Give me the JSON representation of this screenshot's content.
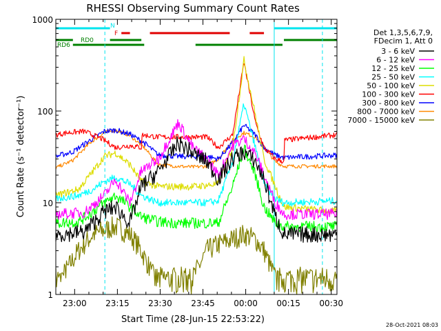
{
  "chart_data": {
    "type": "line",
    "title": "RHESSI Observing Summary Count Rates",
    "xlabel": "Start Time (28-Jun-15 22:53:22)",
    "ylabel": "Count Rate (s⁻¹ detector⁻¹)",
    "yscale": "log",
    "ylim": [
      1,
      1000
    ],
    "xlim": [
      0,
      98.6
    ],
    "x_units": "minutes since 22:53:22",
    "y_ticks": [
      {
        "value": 1,
        "label": "1"
      },
      {
        "value": 10,
        "label": "10"
      },
      {
        "value": 100,
        "label": "100"
      },
      {
        "value": 1000,
        "label": "1000"
      }
    ],
    "x_ticks": [
      {
        "value": 6.6,
        "label": "23:00"
      },
      {
        "value": 21.6,
        "label": "23:15"
      },
      {
        "value": 36.6,
        "label": "23:30"
      },
      {
        "value": 51.6,
        "label": "23:45"
      },
      {
        "value": 66.6,
        "label": "00:00"
      },
      {
        "value": 81.6,
        "label": "00:15"
      },
      {
        "value": 96.6,
        "label": "00:30"
      }
    ],
    "legend": {
      "header": [
        "Det 1,3,5,6,7,9,",
        "FDecim 1, Att 0"
      ],
      "placement": "right"
    },
    "vlines_dashed": [
      17.2,
      93.5
    ],
    "vlines_solid": [
      76.6
    ],
    "state_bars": [
      {
        "label": "N",
        "color": "#00e5ee",
        "segments": [
          [
            0,
            19
          ],
          [
            76.6,
            98.6
          ]
        ]
      },
      {
        "label": "F",
        "color": "#e00000",
        "segments": [
          [
            23,
            26
          ],
          [
            33,
            61
          ],
          [
            68,
            73
          ]
        ]
      },
      {
        "label": "RD0",
        "color": "#008000",
        "segments": [
          [
            0,
            6
          ],
          [
            19,
            30
          ],
          [
            80,
            98.6
          ]
        ]
      },
      {
        "label": "RD6",
        "color": "#008000",
        "segments": [
          [
            6,
            31
          ],
          [
            49,
            79.5
          ]
        ]
      }
    ],
    "series": [
      {
        "name": "3 - 6 keV",
        "color": "#000000",
        "x": [
          0,
          10,
          17,
          21,
          26,
          30,
          36,
          43,
          48,
          53,
          57,
          62,
          66,
          70,
          73,
          77,
          80,
          98.6
        ],
        "values": [
          4.5,
          4.8,
          8,
          9,
          6,
          15,
          22,
          45,
          35,
          28,
          18,
          30,
          36,
          28,
          18,
          7,
          4.5,
          4.5
        ]
      },
      {
        "name": "6 - 12 keV",
        "color": "#ff00ff",
        "x": [
          0,
          10,
          17,
          21,
          26,
          30,
          36,
          43,
          48,
          53,
          57,
          62,
          66,
          70,
          73,
          77,
          80,
          98.6
        ],
        "values": [
          7.5,
          7.8,
          12,
          18,
          10,
          22,
          30,
          75,
          40,
          30,
          20,
          42,
          50,
          34,
          20,
          10,
          7.5,
          7.5
        ]
      },
      {
        "name": "12 - 25 keV",
        "color": "#00ff00",
        "x": [
          0,
          8,
          13,
          17,
          21,
          26,
          30,
          36,
          43,
          48,
          53,
          57,
          62,
          66,
          70,
          73,
          77,
          80,
          98.6
        ],
        "values": [
          6,
          6.2,
          8,
          10,
          12,
          9,
          7,
          6.2,
          6,
          6,
          6,
          6,
          15,
          40,
          20,
          9,
          6,
          5.5,
          5.5
        ]
      },
      {
        "name": "25 - 50 keV",
        "color": "#00ffff",
        "x": [
          0,
          8,
          13,
          17,
          21,
          26,
          30,
          36,
          43,
          48,
          53,
          57,
          62,
          66,
          70,
          73,
          77,
          80,
          98.6
        ],
        "values": [
          11,
          12,
          14,
          17,
          19,
          16,
          12,
          10,
          10,
          10,
          10,
          10.5,
          28,
          120,
          40,
          16,
          11,
          10,
          10.5
        ]
      },
      {
        "name": "50 - 100 keV",
        "color": "#dddd00",
        "x": [
          0,
          8,
          13,
          17,
          21,
          26,
          30,
          36,
          43,
          48,
          53,
          57,
          62,
          66,
          70,
          73,
          77,
          80,
          98.6
        ],
        "values": [
          12,
          14,
          22,
          32,
          35,
          26,
          17,
          15,
          15,
          15,
          15.5,
          16,
          40,
          360,
          90,
          30,
          15,
          9,
          8
        ]
      },
      {
        "name": "100 - 300 keV",
        "color": "#ff0000",
        "x": [
          0,
          4,
          10,
          16,
          21,
          26,
          30,
          30.1,
          36,
          43,
          48,
          53,
          57,
          62,
          66,
          70,
          73,
          77,
          80,
          80.1,
          98.6
        ],
        "values": [
          55,
          58,
          60,
          50,
          40,
          42,
          40,
          55,
          52,
          52,
          52,
          52,
          40,
          55,
          340,
          75,
          40,
          30,
          28,
          48,
          55
        ]
      },
      {
        "name": "300 - 800 keV",
        "color": "#0000ff",
        "x": [
          0,
          6,
          12,
          17,
          21,
          26,
          31,
          36,
          43,
          48,
          53,
          57,
          62,
          66,
          70,
          73,
          77,
          80,
          98.6
        ],
        "values": [
          32,
          36,
          48,
          60,
          62,
          56,
          45,
          33,
          32,
          32,
          32,
          30,
          45,
          70,
          55,
          40,
          33,
          31,
          33
        ]
      },
      {
        "name": "800 - 7000 keV",
        "color": "#ff8800",
        "x": [
          0,
          6,
          12,
          17,
          21,
          26,
          31,
          36,
          43,
          48,
          53,
          57,
          62,
          66,
          70,
          73,
          77,
          80,
          98.6
        ],
        "values": [
          24,
          29,
          45,
          58,
          62,
          54,
          40,
          26,
          25,
          24.5,
          25,
          30,
          48,
          58,
          52,
          40,
          28,
          25,
          25
        ]
      },
      {
        "name": "7000 - 15000 keV",
        "color": "#808000",
        "x": [
          0,
          8,
          13,
          17,
          21,
          26,
          30,
          36,
          43,
          48,
          53,
          57,
          62,
          66,
          70,
          73,
          77,
          80,
          98.6
        ],
        "values": [
          1.2,
          3,
          4.5,
          5,
          5.5,
          4.5,
          3,
          1.2,
          1.2,
          1.5,
          3,
          3.5,
          4,
          4.5,
          4,
          3,
          1.5,
          1.2,
          1.2
        ]
      }
    ]
  },
  "footer_timestamp": "28-Oct-2021 08:03"
}
